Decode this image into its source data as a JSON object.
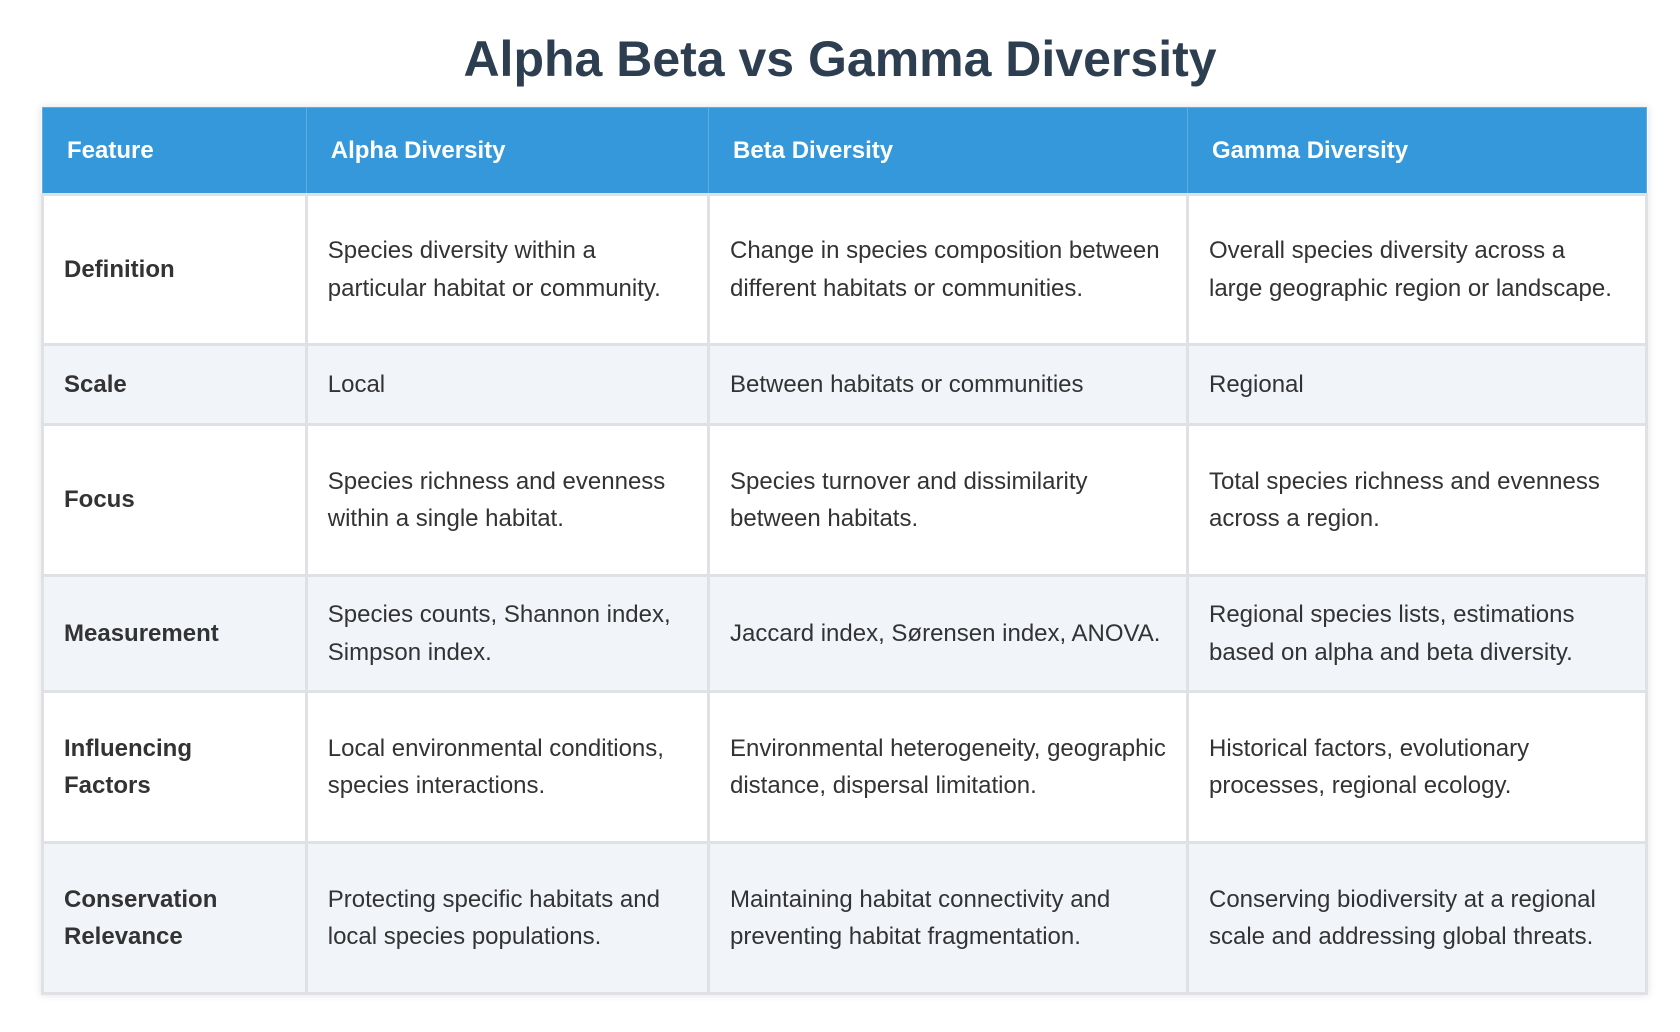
{
  "title": "Alpha Beta vs Gamma Diversity",
  "colors": {
    "header_bg": "#3498db",
    "title": "#2c3e50",
    "alt_row": "#f1f5fa"
  },
  "table": {
    "headers": [
      "Feature",
      "Alpha Diversity",
      "Beta Diversity",
      "Gamma Diversity"
    ],
    "rows": [
      [
        "Definition",
        "Species diversity within a particular habitat or community.",
        "Change in species composition between different habitats or communities.",
        "Overall species diversity across a large geographic region or landscape."
      ],
      [
        "Scale",
        "Local",
        "Between habitats or communities",
        "Regional"
      ],
      [
        "Focus",
        "Species richness and evenness within a single habitat.",
        "Species turnover and dissimilarity between habitats.",
        "Total species richness and evenness across a region."
      ],
      [
        "Measurement",
        "Species counts, Shannon index, Simpson index.",
        "Jaccard index, Sørensen index, ANOVA.",
        "Regional species lists, estimations based on alpha and beta diversity."
      ],
      [
        "Influencing Factors",
        "Local environmental conditions, species interactions.",
        "Environmental heterogeneity, geographic distance, dispersal limitation.",
        "Historical factors, evolutionary processes, regional ecology."
      ],
      [
        "Conservation Relevance",
        "Protecting specific habitats and local species populations.",
        "Maintaining habitat connectivity and preventing habitat fragmentation.",
        "Conserving biodiversity at a regional scale and addressing global threats."
      ]
    ]
  }
}
